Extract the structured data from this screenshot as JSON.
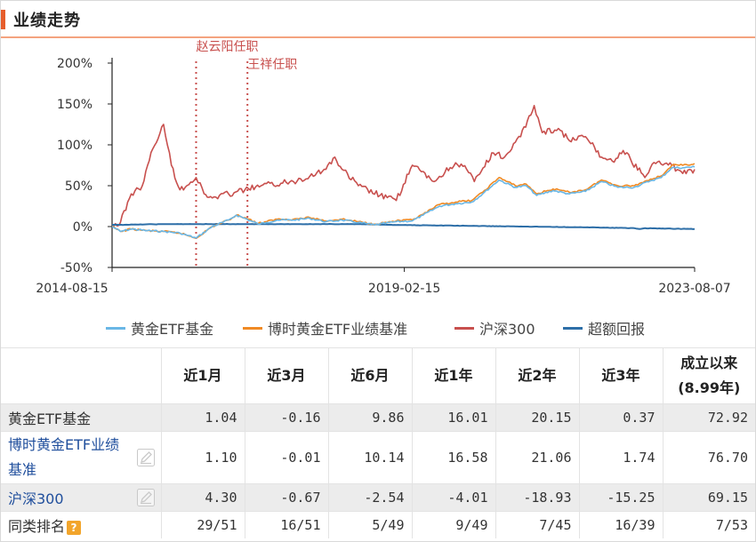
{
  "header": {
    "title": "业绩走势"
  },
  "colors": {
    "fund": "#6ab7e6",
    "benchmark": "#f08a24",
    "hs300": "#c8504e",
    "excess": "#2e6fa8",
    "marker": "#c8504e",
    "accent": "#e65d2b"
  },
  "chart_data": {
    "type": "line",
    "title": "",
    "xlabel": "",
    "ylabel": "",
    "ylim": [
      -50,
      200
    ],
    "y_ticks": [
      "200%",
      "150%",
      "100%",
      "50%",
      "0%",
      "-50%"
    ],
    "y_tick_values": [
      200,
      150,
      100,
      50,
      0,
      -50
    ],
    "x_ticks": [
      "2014-08-15",
      "2019-02-15",
      "2023-08-07"
    ],
    "x_range": [
      "2014-08-15",
      "2023-08-07"
    ],
    "grid": false,
    "legend": "bottom",
    "annotations": [
      {
        "label": "赵云阳任职",
        "date": "2015-12-01"
      },
      {
        "label": "王祥任职",
        "date": "2016-09-15"
      }
    ],
    "series": [
      {
        "name": "黄金ETF基金",
        "points": [
          [
            "2014-08-15",
            0
          ],
          [
            "2014-10-01",
            -6
          ],
          [
            "2014-12-01",
            -3
          ],
          [
            "2015-03-01",
            -5
          ],
          [
            "2015-06-01",
            -6
          ],
          [
            "2015-09-01",
            -8
          ],
          [
            "2015-12-01",
            -14
          ],
          [
            "2016-03-01",
            0
          ],
          [
            "2016-06-01",
            8
          ],
          [
            "2016-07-15",
            14
          ],
          [
            "2016-09-01",
            10
          ],
          [
            "2016-11-15",
            3
          ],
          [
            "2017-01-01",
            5
          ],
          [
            "2017-03-01",
            8
          ],
          [
            "2017-06-01",
            8
          ],
          [
            "2017-09-01",
            10
          ],
          [
            "2017-12-01",
            6
          ],
          [
            "2018-03-01",
            8
          ],
          [
            "2018-06-01",
            5
          ],
          [
            "2018-09-01",
            2
          ],
          [
            "2019-01-01",
            6
          ],
          [
            "2019-04-01",
            7
          ],
          [
            "2019-06-01",
            14
          ],
          [
            "2019-09-01",
            25
          ],
          [
            "2019-12-01",
            28
          ],
          [
            "2020-03-01",
            30
          ],
          [
            "2020-05-01",
            40
          ],
          [
            "2020-08-01",
            57
          ],
          [
            "2020-11-01",
            48
          ],
          [
            "2021-01-01",
            50
          ],
          [
            "2021-03-01",
            38
          ],
          [
            "2021-06-01",
            44
          ],
          [
            "2021-09-01",
            40
          ],
          [
            "2021-12-01",
            43
          ],
          [
            "2022-03-01",
            55
          ],
          [
            "2022-06-01",
            48
          ],
          [
            "2022-09-01",
            48
          ],
          [
            "2022-12-01",
            56
          ],
          [
            "2023-02-01",
            60
          ],
          [
            "2023-04-01",
            72
          ],
          [
            "2023-06-01",
            72
          ],
          [
            "2023-08-07",
            73
          ]
        ]
      },
      {
        "name": "博时黄金ETF业绩基准",
        "points": [
          [
            "2014-08-15",
            0
          ],
          [
            "2014-10-01",
            -6
          ],
          [
            "2014-12-01",
            -3
          ],
          [
            "2015-03-01",
            -5
          ],
          [
            "2015-06-01",
            -6
          ],
          [
            "2015-09-01",
            -8
          ],
          [
            "2015-12-01",
            -14
          ],
          [
            "2016-03-01",
            0
          ],
          [
            "2016-06-01",
            8
          ],
          [
            "2016-07-15",
            14
          ],
          [
            "2016-09-01",
            11
          ],
          [
            "2016-11-15",
            4
          ],
          [
            "2017-01-01",
            6
          ],
          [
            "2017-03-01",
            9
          ],
          [
            "2017-06-01",
            9
          ],
          [
            "2017-09-01",
            11
          ],
          [
            "2017-12-01",
            7
          ],
          [
            "2018-03-01",
            9
          ],
          [
            "2018-06-01",
            6
          ],
          [
            "2018-09-01",
            3
          ],
          [
            "2019-01-01",
            7
          ],
          [
            "2019-04-01",
            8
          ],
          [
            "2019-06-01",
            15
          ],
          [
            "2019-09-01",
            27
          ],
          [
            "2019-12-01",
            30
          ],
          [
            "2020-03-01",
            32
          ],
          [
            "2020-05-01",
            42
          ],
          [
            "2020-08-01",
            60
          ],
          [
            "2020-11-01",
            50
          ],
          [
            "2021-01-01",
            52
          ],
          [
            "2021-03-01",
            40
          ],
          [
            "2021-06-01",
            46
          ],
          [
            "2021-09-01",
            42
          ],
          [
            "2021-12-01",
            45
          ],
          [
            "2022-03-01",
            57
          ],
          [
            "2022-06-01",
            50
          ],
          [
            "2022-09-01",
            50
          ],
          [
            "2022-12-01",
            58
          ],
          [
            "2023-02-01",
            62
          ],
          [
            "2023-04-01",
            75
          ],
          [
            "2023-06-01",
            75
          ],
          [
            "2023-08-07",
            77
          ]
        ]
      },
      {
        "name": "沪深300",
        "points": [
          [
            "2014-08-15",
            0
          ],
          [
            "2014-10-01",
            5
          ],
          [
            "2014-12-01",
            40
          ],
          [
            "2015-02-01",
            50
          ],
          [
            "2015-04-01",
            95
          ],
          [
            "2015-06-01",
            125
          ],
          [
            "2015-07-15",
            75
          ],
          [
            "2015-09-01",
            45
          ],
          [
            "2015-12-01",
            60
          ],
          [
            "2016-01-15",
            40
          ],
          [
            "2016-03-01",
            35
          ],
          [
            "2016-06-01",
            40
          ],
          [
            "2016-09-01",
            45
          ],
          [
            "2016-12-01",
            50
          ],
          [
            "2017-06-01",
            55
          ],
          [
            "2017-12-01",
            70
          ],
          [
            "2018-01-20",
            85
          ],
          [
            "2018-03-01",
            70
          ],
          [
            "2018-06-01",
            50
          ],
          [
            "2018-10-01",
            38
          ],
          [
            "2019-01-01",
            32
          ],
          [
            "2019-04-01",
            75
          ],
          [
            "2019-08-01",
            55
          ],
          [
            "2019-12-01",
            78
          ],
          [
            "2020-02-01",
            70
          ],
          [
            "2020-03-15",
            55
          ],
          [
            "2020-07-01",
            90
          ],
          [
            "2020-09-01",
            85
          ],
          [
            "2020-12-01",
            110
          ],
          [
            "2021-02-15",
            148
          ],
          [
            "2021-04-01",
            115
          ],
          [
            "2021-07-01",
            120
          ],
          [
            "2021-09-01",
            105
          ],
          [
            "2021-12-01",
            110
          ],
          [
            "2022-03-01",
            85
          ],
          [
            "2022-05-01",
            80
          ],
          [
            "2022-07-01",
            93
          ],
          [
            "2022-10-31",
            60
          ],
          [
            "2022-12-01",
            72
          ],
          [
            "2023-01-20",
            80
          ],
          [
            "2023-04-01",
            75
          ],
          [
            "2023-06-01",
            65
          ],
          [
            "2023-08-07",
            70
          ]
        ]
      },
      {
        "name": "超额回报",
        "points": [
          [
            "2014-08-15",
            2
          ],
          [
            "2015-06-01",
            3
          ],
          [
            "2016-06-01",
            3
          ],
          [
            "2017-06-01",
            3
          ],
          [
            "2018-06-01",
            3
          ],
          [
            "2019-01-01",
            2
          ],
          [
            "2020-01-01",
            1
          ],
          [
            "2021-01-01",
            0
          ],
          [
            "2022-01-01",
            -1
          ],
          [
            "2022-09-01",
            -2
          ],
          [
            "2022-10-01",
            -3
          ],
          [
            "2022-11-01",
            -2
          ],
          [
            "2023-08-07",
            -3
          ]
        ]
      }
    ]
  },
  "legend": [
    {
      "label": "黄金ETF基金"
    },
    {
      "label": "博时黄金ETF业绩基准"
    },
    {
      "label": "沪深300"
    },
    {
      "label": "超额回报"
    }
  ],
  "table": {
    "headers": [
      "近1月",
      "近3月",
      "近6月",
      "近1年",
      "近2年",
      "近3年",
      "成立以来",
      "(8.99年)"
    ],
    "rows": [
      {
        "name": "黄金ETF基金",
        "values": [
          "1.04",
          "-0.16",
          "9.86",
          "16.01",
          "20.15",
          "0.37",
          "72.92"
        ]
      },
      {
        "name": "博时黄金ETF业绩基准",
        "values": [
          "1.10",
          "-0.01",
          "10.14",
          "16.58",
          "21.06",
          "1.74",
          "76.70"
        ]
      },
      {
        "name": "沪深300",
        "values": [
          "4.30",
          "-0.67",
          "-2.54",
          "-4.01",
          "-18.93",
          "-15.25",
          "69.15"
        ]
      },
      {
        "name": "同类排名",
        "help": "?",
        "values": [
          "29/51",
          "16/51",
          "5/49",
          "9/49",
          "7/45",
          "16/39",
          "7/53"
        ]
      }
    ]
  }
}
